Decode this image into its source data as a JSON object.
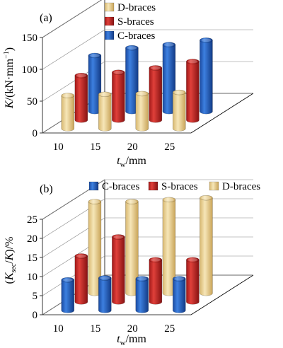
{
  "chart_data": [
    {
      "type": "bar",
      "panel_label": "(a)",
      "three_d": true,
      "categories": [
        "10",
        "15",
        "20",
        "25"
      ],
      "series": [
        {
          "name": "D-braces",
          "values": [
            52,
            54,
            55,
            57
          ]
        },
        {
          "name": "S-braces",
          "values": [
            70,
            75,
            82,
            92
          ]
        },
        {
          "name": "C-braces",
          "values": [
            88,
            100,
            105,
            112
          ]
        }
      ],
      "xlabel_main": "t",
      "xlabel_sub": "w",
      "xlabel_unit": "/mm",
      "ylabel_main": "K",
      "ylabel_unit": "/(kN·mm",
      "ylabel_sup": "−1",
      "ylabel_end": ")",
      "ylim": [
        0,
        150
      ],
      "yticks": [
        0,
        50,
        100,
        150
      ],
      "grid": true,
      "legend_position": "top-center"
    },
    {
      "type": "bar",
      "panel_label": "(b)",
      "three_d": true,
      "categories": [
        "10",
        "15",
        "20",
        "25"
      ],
      "series": [
        {
          "name": "C-braces",
          "values": [
            8,
            8.5,
            8.3,
            8.3
          ]
        },
        {
          "name": "S-braces",
          "values": [
            12,
            17,
            11,
            11
          ]
        },
        {
          "name": "D-braces",
          "values": [
            24,
            24,
            24.5,
            25
          ]
        }
      ],
      "xlabel_main": "t",
      "xlabel_sub": "w",
      "xlabel_unit": "/mm",
      "ylabel_open": "(",
      "ylabel_main": "K",
      "ylabel_sub": "sec",
      "ylabel_mid": "/",
      "ylabel_main2": "K",
      "ylabel_end": ")/%",
      "ylim": [
        0,
        25
      ],
      "yticks": [
        0,
        5,
        10,
        15,
        20,
        25
      ],
      "grid": true,
      "legend_position": "top"
    }
  ],
  "colors": {
    "C-braces": "#1f5fbf",
    "S-braces": "#c0201e",
    "D-braces": "#e3c98a"
  }
}
